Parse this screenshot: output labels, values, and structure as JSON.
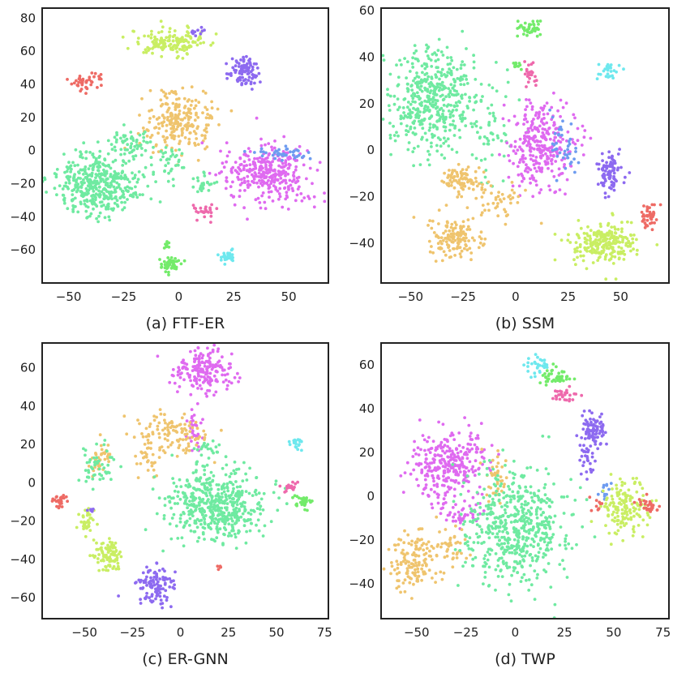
{
  "figure_type": "t-SNE scatter comparison",
  "cluster_colors": {
    "red": "#ee6b65",
    "lime": "#c9ee63",
    "purple": "#8d6af0",
    "orange": "#efc46e",
    "green": "#6feaa1",
    "magenta": "#df6af0",
    "blue": "#6e9cf0",
    "pink": "#ee69ac",
    "lightgreen": "#73eb6a",
    "cyan": "#6ee8ee"
  },
  "chart_data": [
    {
      "type": "scatter",
      "title": "(a) FTF-ER",
      "xlim": [
        -62,
        68
      ],
      "ylim": [
        -80,
        86
      ],
      "xticks": [
        -50,
        -25,
        0,
        25,
        50
      ],
      "xtick_labels": [
        "−50",
        "−25",
        "0",
        "25",
        "50"
      ],
      "yticks": [
        -60,
        -40,
        -20,
        0,
        20,
        40,
        60,
        80
      ],
      "ytick_labels": [
        "−60",
        "−40",
        "−20",
        "0",
        "20",
        "40",
        "60",
        "80"
      ],
      "clusters": [
        {
          "color": "red",
          "cx": -43,
          "cy": 40,
          "sx": 3,
          "sy": 2.5,
          "n": 35
        },
        {
          "color": "red",
          "cx": -37,
          "cy": 45,
          "sx": 1.5,
          "sy": 1.2,
          "n": 8
        },
        {
          "color": "lime",
          "cx": -3,
          "cy": 66,
          "sx": 9,
          "sy": 4,
          "n": 150
        },
        {
          "color": "purple",
          "cx": 30,
          "cy": 48,
          "sx": 3.5,
          "sy": 4.5,
          "n": 90
        },
        {
          "color": "purple",
          "cx": 8,
          "cy": 72,
          "sx": 2,
          "sy": 2,
          "n": 10
        },
        {
          "color": "orange",
          "cx": 0,
          "cy": 18,
          "sx": 7.5,
          "sy": 9,
          "n": 230
        },
        {
          "color": "green",
          "cx": -37,
          "cy": -20,
          "sx": 10,
          "sy": 9,
          "n": 420
        },
        {
          "color": "green",
          "cx": -21,
          "cy": 4,
          "sx": 4,
          "sy": 4,
          "n": 60
        },
        {
          "color": "green",
          "cx": -3,
          "cy": -8,
          "sx": 4,
          "sy": 5,
          "n": 35
        },
        {
          "color": "green",
          "cx": 11,
          "cy": -20,
          "sx": 2.5,
          "sy": 3,
          "n": 25
        },
        {
          "color": "magenta",
          "cx": 40,
          "cy": -14,
          "sx": 10,
          "sy": 9,
          "n": 330
        },
        {
          "color": "blue",
          "cx": 48,
          "cy": -2,
          "sx": 6,
          "sy": 2,
          "n": 40
        },
        {
          "color": "pink",
          "cx": 11,
          "cy": -38,
          "sx": 2,
          "sy": 2.5,
          "n": 25
        },
        {
          "color": "lightgreen",
          "cx": -4,
          "cy": -69,
          "sx": 2.5,
          "sy": 2.5,
          "n": 50
        },
        {
          "color": "lightgreen",
          "cx": -5,
          "cy": -58,
          "sx": 1,
          "sy": 1.5,
          "n": 8
        },
        {
          "color": "cyan",
          "cx": 22,
          "cy": -64,
          "sx": 2,
          "sy": 2,
          "n": 28
        }
      ]
    },
    {
      "type": "scatter",
      "title": "(b) SSM",
      "xlim": [
        -64,
        73
      ],
      "ylim": [
        -57,
        61
      ],
      "xticks": [
        -50,
        -25,
        0,
        25,
        50
      ],
      "xtick_labels": [
        "−50",
        "−25",
        "0",
        "25",
        "50"
      ],
      "yticks": [
        -40,
        -20,
        0,
        20,
        40,
        60
      ],
      "ytick_labels": [
        "−40",
        "−20",
        "0",
        "20",
        "40",
        "60"
      ],
      "clusters": [
        {
          "color": "green",
          "cx": -38,
          "cy": 22,
          "sx": 12,
          "sy": 11,
          "n": 480
        },
        {
          "color": "green",
          "cx": -12,
          "cy": 0,
          "sx": 5,
          "sy": 8,
          "n": 40
        },
        {
          "color": "lightgreen",
          "cx": 7,
          "cy": 52,
          "sx": 2.5,
          "sy": 2,
          "n": 40
        },
        {
          "color": "lightgreen",
          "cx": 0,
          "cy": 37,
          "sx": 1.5,
          "sy": 1.5,
          "n": 10
        },
        {
          "color": "pink",
          "cx": 7,
          "cy": 32,
          "sx": 2,
          "sy": 2.5,
          "n": 22
        },
        {
          "color": "cyan",
          "cx": 44,
          "cy": 34,
          "sx": 2.5,
          "sy": 1.5,
          "n": 25
        },
        {
          "color": "magenta",
          "cx": 12,
          "cy": 2,
          "sx": 8,
          "sy": 9,
          "n": 310
        },
        {
          "color": "blue",
          "cx": 23,
          "cy": 3,
          "sx": 3,
          "sy": 6,
          "n": 40
        },
        {
          "color": "purple",
          "cx": 45,
          "cy": -9,
          "sx": 3,
          "sy": 4.5,
          "n": 90
        },
        {
          "color": "orange",
          "cx": -25,
          "cy": -13,
          "sx": 5,
          "sy": 3,
          "n": 85
        },
        {
          "color": "orange",
          "cx": -29,
          "cy": -38,
          "sx": 6,
          "sy": 4,
          "n": 140
        },
        {
          "color": "orange",
          "cx": -8,
          "cy": -22,
          "sx": 7,
          "sy": 5,
          "n": 45
        },
        {
          "color": "lime",
          "cx": 42,
          "cy": -40,
          "sx": 8,
          "sy": 4.5,
          "n": 240
        },
        {
          "color": "red",
          "cx": 63,
          "cy": -29,
          "sx": 2.5,
          "sy": 3,
          "n": 40
        }
      ]
    },
    {
      "type": "scatter",
      "title": "(c) ER-GNN",
      "xlim": [
        -72,
        77
      ],
      "ylim": [
        -71,
        73
      ],
      "xticks": [
        -50,
        -25,
        0,
        25,
        50,
        75
      ],
      "xtick_labels": [
        "−50",
        "−25",
        "0",
        "25",
        "50",
        "75"
      ],
      "yticks": [
        -60,
        -40,
        -20,
        0,
        20,
        40,
        60
      ],
      "ytick_labels": [
        "−60",
        "−40",
        "−20",
        "0",
        "20",
        "40",
        "60"
      ],
      "clusters": [
        {
          "color": "magenta",
          "cx": 12,
          "cy": 58,
          "sx": 7,
          "sy": 6,
          "n": 180
        },
        {
          "color": "magenta",
          "cx": 8,
          "cy": 28,
          "sx": 2.5,
          "sy": 6,
          "n": 35
        },
        {
          "color": "orange",
          "cx": -5,
          "cy": 26,
          "sx": 9,
          "sy": 6,
          "n": 110
        },
        {
          "color": "orange",
          "cx": -42,
          "cy": 12,
          "sx": 3,
          "sy": 4,
          "n": 35
        },
        {
          "color": "orange",
          "cx": -18,
          "cy": 12,
          "sx": 4,
          "sy": 4,
          "n": 25
        },
        {
          "color": "green",
          "cx": 18,
          "cy": -12,
          "sx": 13,
          "sy": 9,
          "n": 520
        },
        {
          "color": "green",
          "cx": -42,
          "cy": 8,
          "sx": 5,
          "sy": 6,
          "n": 50
        },
        {
          "color": "green",
          "cx": 14,
          "cy": 18,
          "sx": 3,
          "sy": 2,
          "n": 20
        },
        {
          "color": "cyan",
          "cx": 61,
          "cy": 21,
          "sx": 1.5,
          "sy": 1.8,
          "n": 20
        },
        {
          "color": "pink",
          "cx": 57,
          "cy": -2,
          "sx": 2,
          "sy": 1.5,
          "n": 18
        },
        {
          "color": "lightgreen",
          "cx": 63,
          "cy": -10,
          "sx": 3,
          "sy": 1.8,
          "n": 28
        },
        {
          "color": "red",
          "cx": -63,
          "cy": -10,
          "sx": 2.5,
          "sy": 2,
          "n": 25
        },
        {
          "color": "red",
          "cx": 21,
          "cy": -44,
          "sx": 0.8,
          "sy": 0.8,
          "n": 5
        },
        {
          "color": "lime",
          "cx": -48,
          "cy": -19,
          "sx": 2,
          "sy": 4,
          "n": 35
        },
        {
          "color": "lime",
          "cx": -38,
          "cy": -38,
          "sx": 4,
          "sy": 4,
          "n": 90
        },
        {
          "color": "purple",
          "cx": -13,
          "cy": -54,
          "sx": 5,
          "sy": 5,
          "n": 110
        },
        {
          "color": "purple",
          "cx": -47,
          "cy": -14,
          "sx": 1,
          "sy": 1,
          "n": 6
        }
      ]
    },
    {
      "type": "scatter",
      "title": "(d) TWP",
      "xlim": [
        -68,
        78
      ],
      "ylim": [
        -56,
        70
      ],
      "xticks": [
        -50,
        -25,
        0,
        25,
        50,
        75
      ],
      "xtick_labels": [
        "−50",
        "−25",
        "0",
        "25",
        "50",
        "75"
      ],
      "yticks": [
        -40,
        -20,
        0,
        20,
        40,
        60
      ],
      "ytick_labels": [
        "−40",
        "−20",
        "0",
        "20",
        "40",
        "60"
      ],
      "clusters": [
        {
          "color": "cyan",
          "cx": 12,
          "cy": 61,
          "sx": 3,
          "sy": 2.5,
          "n": 30
        },
        {
          "color": "lightgreen",
          "cx": 21,
          "cy": 55,
          "sx": 4,
          "sy": 2,
          "n": 45
        },
        {
          "color": "pink",
          "cx": 25,
          "cy": 46,
          "sx": 3.5,
          "sy": 1.8,
          "n": 28
        },
        {
          "color": "purple",
          "cx": 40,
          "cy": 30,
          "sx": 3,
          "sy": 4,
          "n": 90
        },
        {
          "color": "purple",
          "cx": 37,
          "cy": 18,
          "sx": 2,
          "sy": 4,
          "n": 30
        },
        {
          "color": "magenta",
          "cx": -33,
          "cy": 14,
          "sx": 9,
          "sy": 8,
          "n": 300
        },
        {
          "color": "magenta",
          "cx": -28,
          "cy": -8,
          "sx": 5,
          "sy": 3,
          "n": 40
        },
        {
          "color": "orange",
          "cx": -51,
          "cy": -30,
          "sx": 6,
          "sy": 6,
          "n": 140
        },
        {
          "color": "orange",
          "cx": -33,
          "cy": -22,
          "sx": 5,
          "sy": 5,
          "n": 40
        },
        {
          "color": "orange",
          "cx": -10,
          "cy": 8,
          "sx": 3,
          "sy": 6,
          "n": 40
        },
        {
          "color": "green",
          "cx": 0,
          "cy": -15,
          "sx": 13,
          "sy": 13,
          "n": 560
        },
        {
          "color": "blue",
          "cx": 47,
          "cy": 3,
          "sx": 2,
          "sy": 2,
          "n": 12
        },
        {
          "color": "lime",
          "cx": 55,
          "cy": -5,
          "sx": 6,
          "sy": 6,
          "n": 150
        },
        {
          "color": "red",
          "cx": 68,
          "cy": -4,
          "sx": 2.5,
          "sy": 2,
          "n": 30
        },
        {
          "color": "red",
          "cx": 42,
          "cy": -4,
          "sx": 2,
          "sy": 2,
          "n": 10
        }
      ]
    }
  ]
}
